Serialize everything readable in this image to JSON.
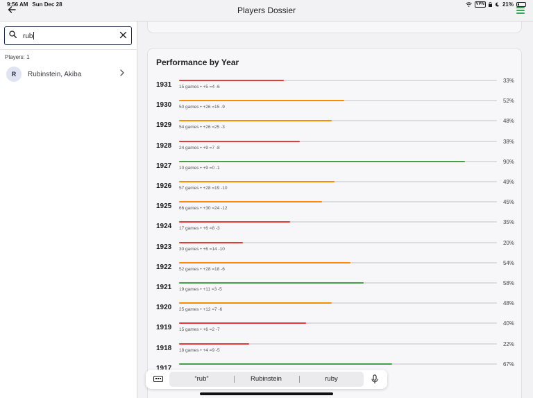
{
  "status_bar": {
    "time": "9:56 AM",
    "date": "Sun Dec 28",
    "vpn": "VPN",
    "battery_pct": "21%",
    "battery_level": 0.21
  },
  "nav": {
    "title": "Players Dossier"
  },
  "search": {
    "value": "rub"
  },
  "players_count": "Players: 1",
  "players": [
    {
      "initial": "R",
      "name": "Rubinstein, Akiba"
    }
  ],
  "performance": {
    "title": "Performance by Year",
    "colors": {
      "red": "#e53935",
      "orange": "#fb8c00",
      "green": "#43a047"
    },
    "years": [
      {
        "year": "1931",
        "stats": "15 games • +5 =4 -6",
        "pct": "33%",
        "value": 33,
        "color": "red"
      },
      {
        "year": "1930",
        "stats": "50 games • +26 =15 -9",
        "pct": "52%",
        "value": 52,
        "color": "orange"
      },
      {
        "year": "1929",
        "stats": "54 games • +26 =25 -3",
        "pct": "48%",
        "value": 48,
        "color": "orange"
      },
      {
        "year": "1928",
        "stats": "24 games • +9 =7 -8",
        "pct": "38%",
        "value": 38,
        "color": "red"
      },
      {
        "year": "1927",
        "stats": "10 games • +9 =0 -1",
        "pct": "90%",
        "value": 90,
        "color": "green"
      },
      {
        "year": "1926",
        "stats": "57 games • +28 =19 -10",
        "pct": "49%",
        "value": 49,
        "color": "orange"
      },
      {
        "year": "1925",
        "stats": "66 games • +30 =24 -12",
        "pct": "45%",
        "value": 45,
        "color": "orange"
      },
      {
        "year": "1924",
        "stats": "17 games • +6 =8 -3",
        "pct": "35%",
        "value": 35,
        "color": "red"
      },
      {
        "year": "1923",
        "stats": "30 games • +6 =14 -10",
        "pct": "20%",
        "value": 20,
        "color": "red"
      },
      {
        "year": "1922",
        "stats": "52 games • +28 =18 -6",
        "pct": "54%",
        "value": 54,
        "color": "orange"
      },
      {
        "year": "1921",
        "stats": "19 games • +11 =3 -5",
        "pct": "58%",
        "value": 58,
        "color": "green"
      },
      {
        "year": "1920",
        "stats": "25 games • +12 =7 -6",
        "pct": "48%",
        "value": 48,
        "color": "orange"
      },
      {
        "year": "1919",
        "stats": "15 games • +6 =2 -7",
        "pct": "40%",
        "value": 40,
        "color": "red"
      },
      {
        "year": "1918",
        "stats": "18 games • +4 =9 -5",
        "pct": "22%",
        "value": 22,
        "color": "red"
      },
      {
        "year": "1917",
        "stats": "",
        "pct": "67%",
        "value": 67,
        "color": "green"
      }
    ]
  },
  "keyboard": {
    "suggestions": [
      "“rub”",
      "Rubinstein",
      "ruby"
    ]
  }
}
